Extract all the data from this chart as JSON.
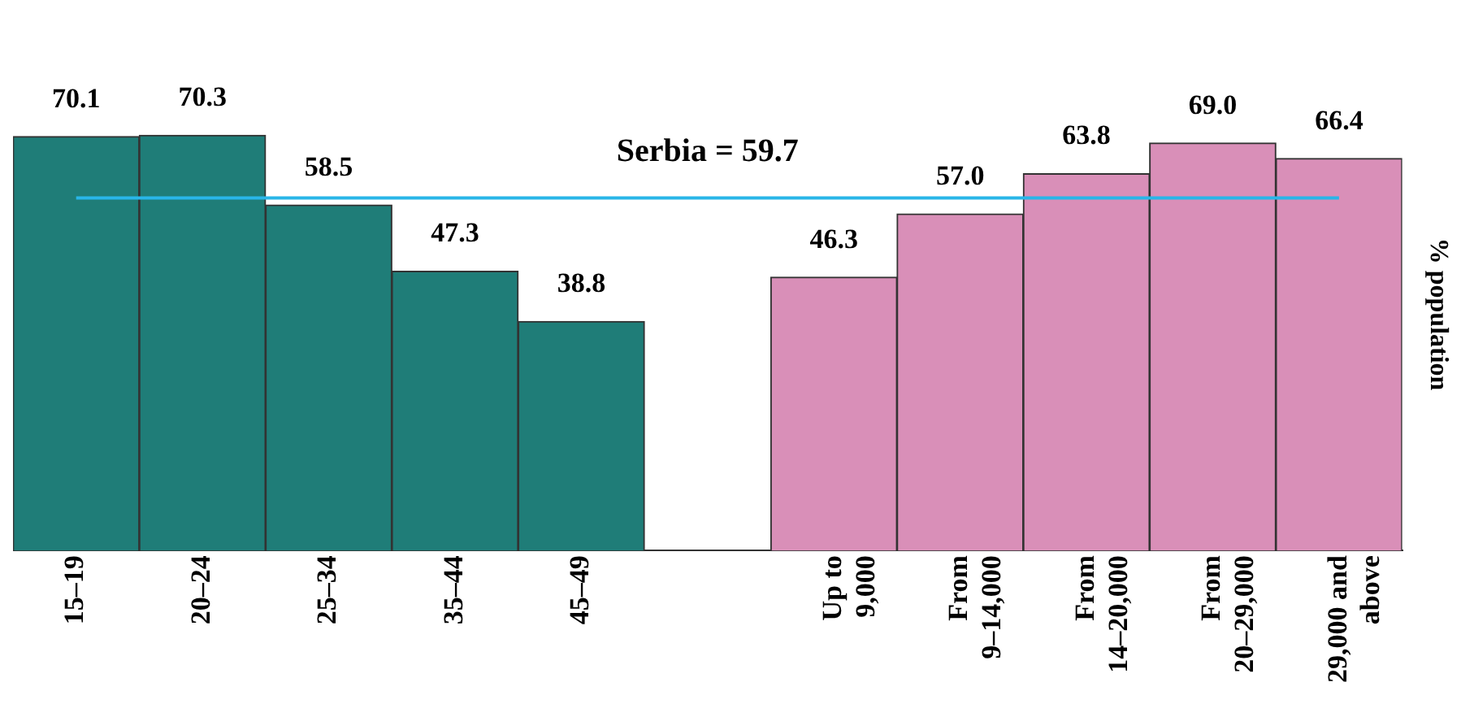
{
  "chart_data": {
    "type": "bar",
    "ylabel": "% population",
    "categories": [
      "15–19",
      "20–24",
      "25–34",
      "35–44",
      "45–49",
      null,
      "Up to\n9,000",
      "From\n9–14,000",
      "From\n14–20,000",
      "From\n20–29,000",
      "29,000 and\nabove"
    ],
    "values": [
      70.1,
      70.3,
      58.5,
      47.3,
      38.8,
      null,
      46.3,
      57.0,
      63.8,
      69.0,
      66.4
    ],
    "colors": [
      "#1f7d78",
      "#1f7d78",
      "#1f7d78",
      "#1f7d78",
      "#1f7d78",
      null,
      "#d98fb8",
      "#d98fb8",
      "#d98fb8",
      "#d98fb8",
      "#d98fb8"
    ],
    "value_labels": [
      "70.1",
      "70.3",
      "58.5",
      "47.3",
      "38.8",
      null,
      "46.3",
      "57.0",
      "63.8",
      "69.0",
      "66.4"
    ],
    "ref_lines": [
      {
        "axis": "y",
        "value": 59.7,
        "label": "Serbia = 59.7",
        "color": "#29b6e8"
      }
    ],
    "tick_labels": "x",
    "grid": false,
    "legend": false
  }
}
